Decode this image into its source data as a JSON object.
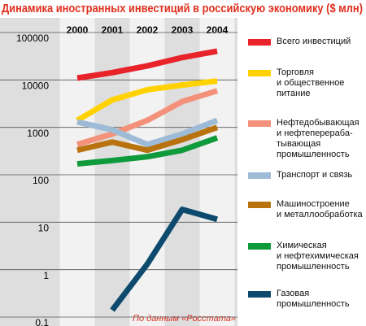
{
  "chart_data": {
    "type": "line",
    "title": "Динамика иностранных инвестиций в российскую экономику ($ млн)",
    "source": "По данным «Росстата»",
    "categories": [
      "2000",
      "2001",
      "2002",
      "2003",
      "2004"
    ],
    "log_scale": true,
    "grid": true,
    "legend": "right",
    "ylim": [
      0.1,
      100000
    ],
    "yticks": [
      100000,
      10000,
      1000,
      100,
      10,
      1,
      {
        "value": 0.1,
        "label": "0,1"
      }
    ],
    "series": [
      {
        "name": "Всего инвестиций",
        "color": "#e8232a",
        "values": [
          10958,
          14258,
          19780,
          29699,
          40509
        ]
      },
      {
        "name": "Торговля\nи общественное\nпитание",
        "color": "#ffd200",
        "values": [
          1400,
          3800,
          6200,
          7800,
          9500
        ]
      },
      {
        "name": "Нефтедобывающая\nи нефтеперераба-\nтывающая\nпромышленность",
        "color": "#f4917a",
        "values": [
          436,
          725,
          1400,
          3500,
          5900
        ]
      },
      {
        "name": "Транспорт и связь",
        "color": "#9dbbd6",
        "values": [
          1300,
          890,
          436,
          725,
          1400
        ]
      },
      {
        "name": "Машиностроение\nи металлообработка",
        "color": "#b8720e",
        "values": [
          330,
          490,
          330,
          550,
          1000
        ]
      },
      {
        "name": "Химическая\nи нефтехимическая\nпромышленность",
        "color": "#0f9a3c",
        "values": [
          170,
          200,
          240,
          330,
          600
        ]
      },
      {
        "name": "Газовая\nпромышленность",
        "color": "#0d4a6e",
        "values": [
          null,
          0.14,
          1.3,
          18.6,
          11.5
        ]
      }
    ]
  }
}
